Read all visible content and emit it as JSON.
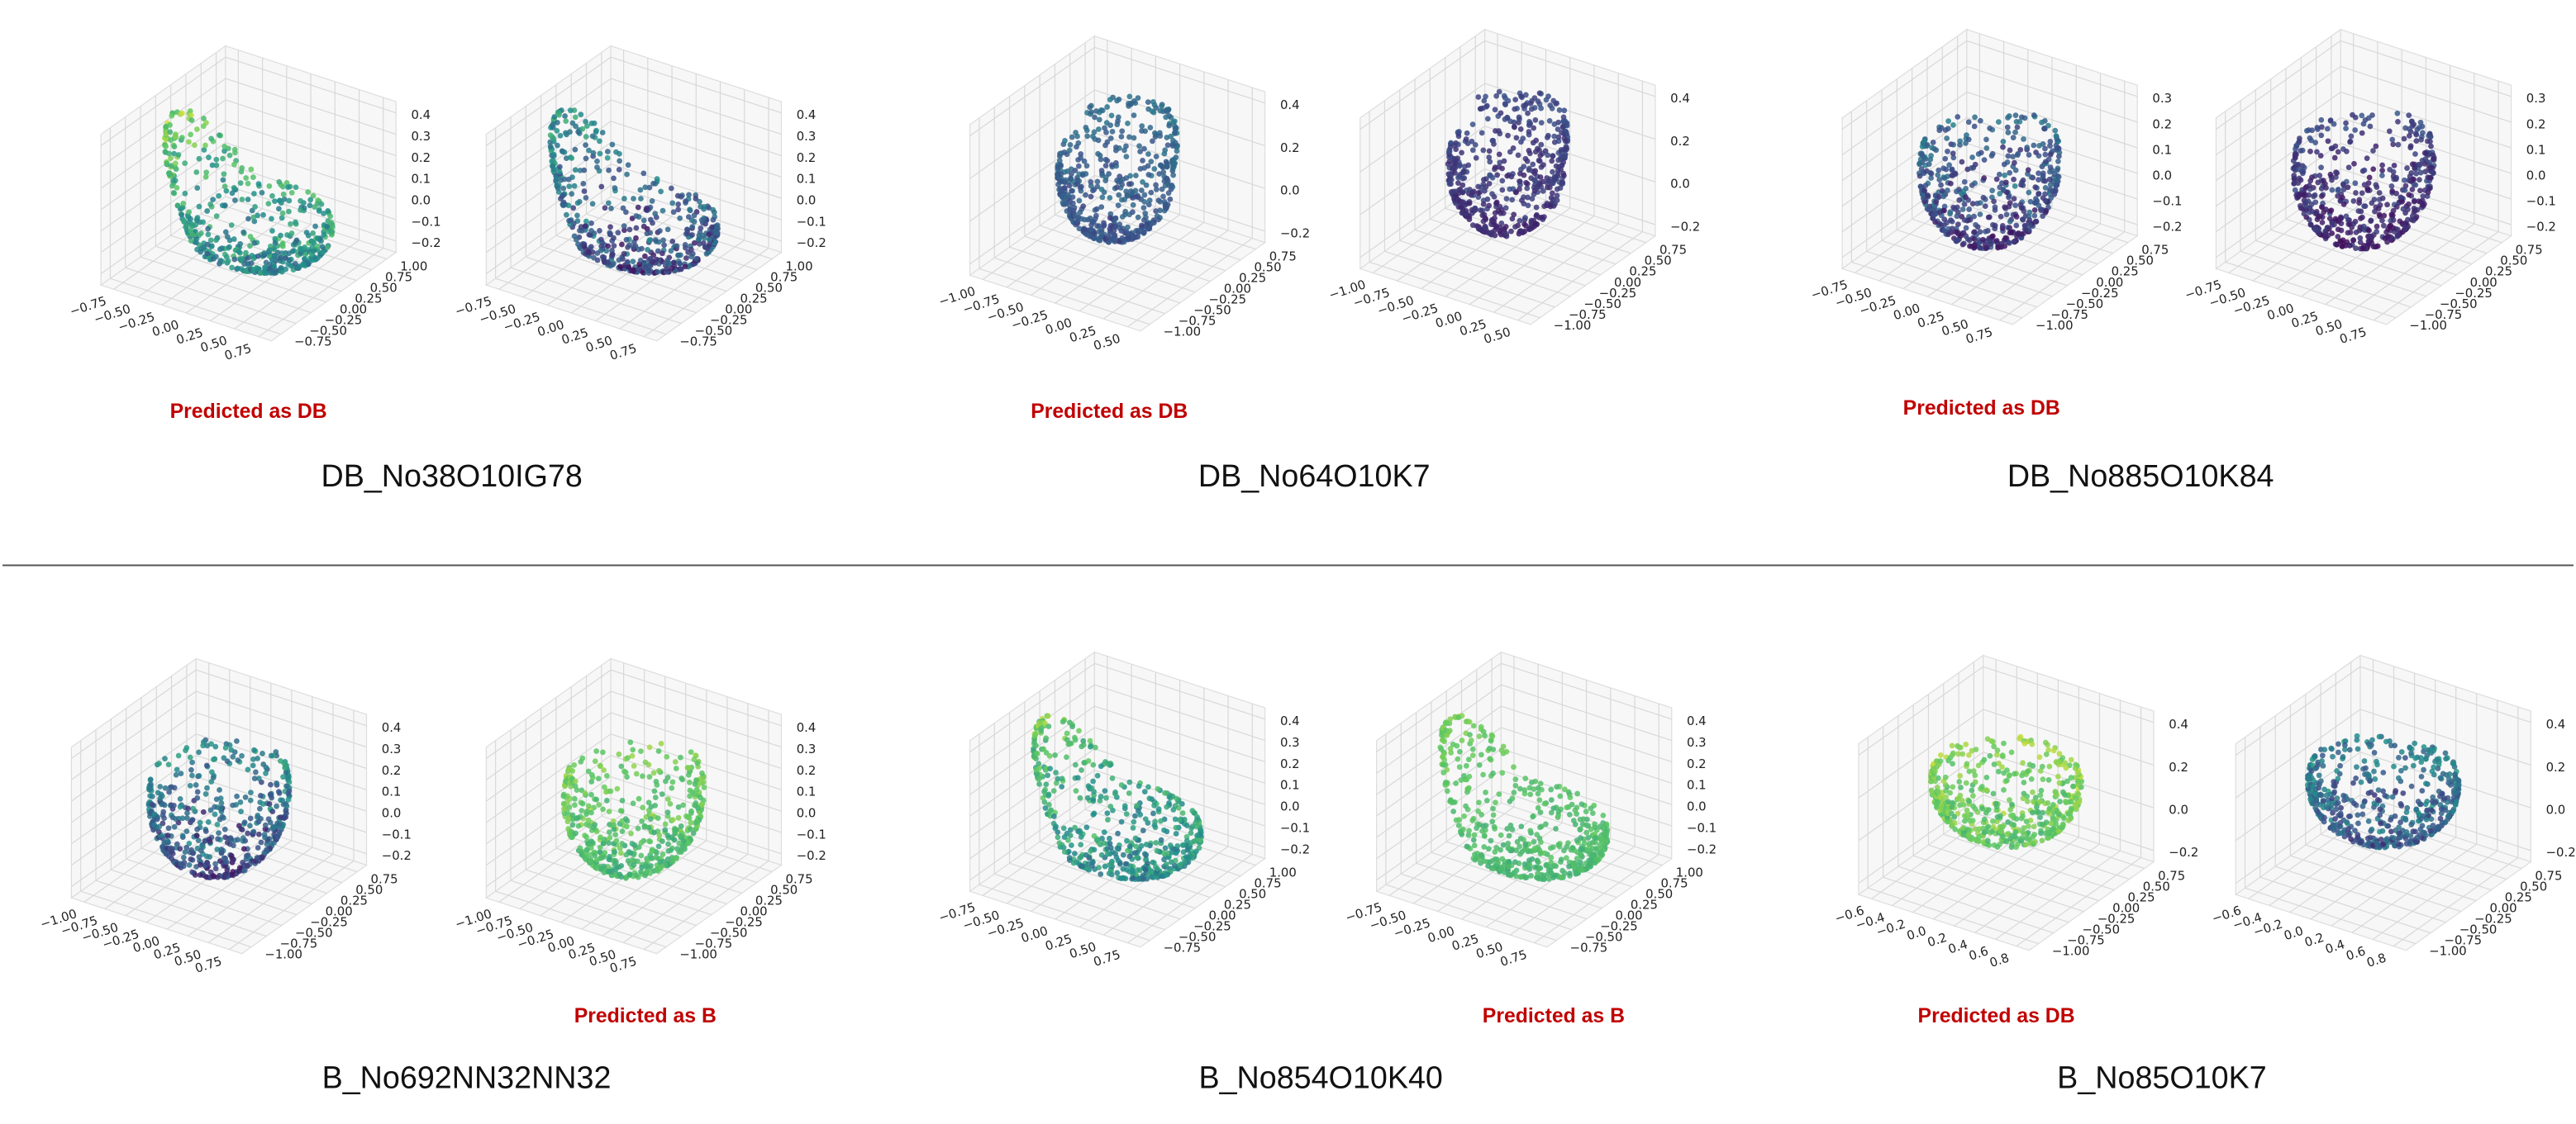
{
  "rows": [
    {
      "panels": [
        {
          "name": "DB_No38O10IG78",
          "prediction": "Predicted as DB",
          "plots": [
            {
              "xticks": [
                "−0.75",
                "−0.50",
                "−0.25",
                "0.00",
                "0.25",
                "0.50",
                "0.75"
              ],
              "yticks": [
                "1.00",
                "0.75",
                "0.50",
                "0.25",
                "0.00",
                "−0.25",
                "−0.50",
                "−0.75"
              ],
              "zticks": [
                "0.4",
                "0.3",
                "0.2",
                "0.1",
                "0.0",
                "−0.1",
                "−0.2"
              ]
            },
            {
              "xticks": [
                "−0.75",
                "−0.50",
                "−0.25",
                "0.00",
                "0.25",
                "0.50",
                "0.75"
              ],
              "yticks": [
                "1.00",
                "0.75",
                "0.50",
                "0.25",
                "0.00",
                "−0.25",
                "−0.50",
                "−0.75"
              ],
              "zticks": [
                "0.4",
                "0.3",
                "0.2",
                "0.1",
                "0.0",
                "−0.1",
                "−0.2"
              ]
            }
          ]
        },
        {
          "name": "DB_No64O10K7",
          "prediction": "Predicted as DB",
          "plots": [
            {
              "xticks": [
                "−1.00",
                "−0.75",
                "−0.50",
                "−0.25",
                "0.00",
                "0.25",
                "0.50"
              ],
              "yticks": [
                "0.75",
                "0.50",
                "0.25",
                "0.00",
                "−0.25",
                "−0.50",
                "−0.75",
                "−1.00"
              ],
              "zticks": [
                "0.4",
                "0.2",
                "0.0",
                "−0.2"
              ]
            },
            {
              "xticks": [
                "−1.00",
                "−0.75",
                "−0.50",
                "−0.25",
                "0.00",
                "0.25",
                "0.50"
              ],
              "yticks": [
                "0.75",
                "0.50",
                "0.25",
                "0.00",
                "−0.25",
                "−0.50",
                "−0.75",
                "−1.00"
              ],
              "zticks": [
                "0.4",
                "0.2",
                "0.0",
                "−0.2"
              ]
            }
          ]
        },
        {
          "name": "DB_No885O10K84",
          "prediction": "Predicted as DB",
          "plots": [
            {
              "xticks": [
                "−0.75",
                "−0.50",
                "−0.25",
                "0.00",
                "0.25",
                "0.50",
                "0.75"
              ],
              "yticks": [
                "0.75",
                "0.50",
                "0.25",
                "0.00",
                "−0.25",
                "−0.50",
                "−0.75",
                "−1.00"
              ],
              "zticks": [
                "0.3",
                "0.2",
                "0.1",
                "0.0",
                "−0.1",
                "−0.2"
              ]
            },
            {
              "xticks": [
                "−0.75",
                "−0.50",
                "−0.25",
                "0.00",
                "0.25",
                "0.50",
                "0.75"
              ],
              "yticks": [
                "0.75",
                "0.50",
                "0.25",
                "0.00",
                "−0.25",
                "−0.50",
                "−0.75",
                "−1.00"
              ],
              "zticks": [
                "0.3",
                "0.2",
                "0.1",
                "0.0",
                "−0.1",
                "−0.2"
              ]
            }
          ]
        }
      ]
    },
    {
      "panels": [
        {
          "name": "B_No692NN32NN32",
          "prediction": "Predicted as B",
          "plots": [
            {
              "xticks": [
                "−1.00",
                "−0.75",
                "−0.50",
                "−0.25",
                "0.00",
                "0.25",
                "0.50",
                "0.75"
              ],
              "yticks": [
                "0.75",
                "0.50",
                "0.25",
                "0.00",
                "−0.25",
                "−0.50",
                "−0.75",
                "−1.00"
              ],
              "zticks": [
                "0.4",
                "0.3",
                "0.2",
                "0.1",
                "0.0",
                "−0.1",
                "−0.2"
              ]
            },
            {
              "xticks": [
                "−1.00",
                "−0.75",
                "−0.50",
                "−0.25",
                "0.00",
                "0.25",
                "0.50",
                "0.75"
              ],
              "yticks": [
                "0.75",
                "0.50",
                "0.25",
                "0.00",
                "−0.25",
                "−0.50",
                "−0.75",
                "−1.00"
              ],
              "zticks": [
                "0.4",
                "0.3",
                "0.2",
                "0.1",
                "0.0",
                "−0.1",
                "−0.2"
              ]
            }
          ]
        },
        {
          "name": "B_No854O10K40",
          "prediction": "Predicted as B",
          "plots": [
            {
              "xticks": [
                "−0.75",
                "−0.50",
                "−0.25",
                "0.00",
                "0.25",
                "0.50",
                "0.75"
              ],
              "yticks": [
                "1.00",
                "0.75",
                "0.50",
                "0.25",
                "0.00",
                "−0.25",
                "−0.50",
                "−0.75"
              ],
              "zticks": [
                "0.4",
                "0.3",
                "0.2",
                "0.1",
                "0.0",
                "−0.1",
                "−0.2"
              ]
            },
            {
              "xticks": [
                "−0.75",
                "−0.50",
                "−0.25",
                "0.00",
                "0.25",
                "0.50",
                "0.75"
              ],
              "yticks": [
                "1.00",
                "0.75",
                "0.50",
                "0.25",
                "0.00",
                "−0.25",
                "−0.50",
                "−0.75"
              ],
              "zticks": [
                "0.4",
                "0.3",
                "0.2",
                "0.1",
                "0.0",
                "−0.1",
                "−0.2"
              ]
            }
          ]
        },
        {
          "name": "B_No85O10K7",
          "prediction": "Predicted as DB",
          "plots": [
            {
              "xticks": [
                "−0.6",
                "−0.4",
                "−0.2",
                "0.0",
                "0.2",
                "0.4",
                "0.6",
                "0.8"
              ],
              "yticks": [
                "0.75",
                "0.50",
                "0.25",
                "0.00",
                "−0.25",
                "−0.50",
                "−0.75",
                "−1.00"
              ],
              "zticks": [
                "0.4",
                "0.2",
                "0.0",
                "−0.2"
              ]
            },
            {
              "xticks": [
                "−0.6",
                "−0.4",
                "−0.2",
                "0.0",
                "0.2",
                "0.4",
                "0.6",
                "0.8"
              ],
              "yticks": [
                "0.75",
                "0.50",
                "0.25",
                "0.00",
                "−0.25",
                "−0.50",
                "−0.75",
                "−1.00"
              ],
              "zticks": [
                "0.4",
                "0.2",
                "0.0",
                "−0.2"
              ]
            }
          ]
        }
      ]
    }
  ]
}
